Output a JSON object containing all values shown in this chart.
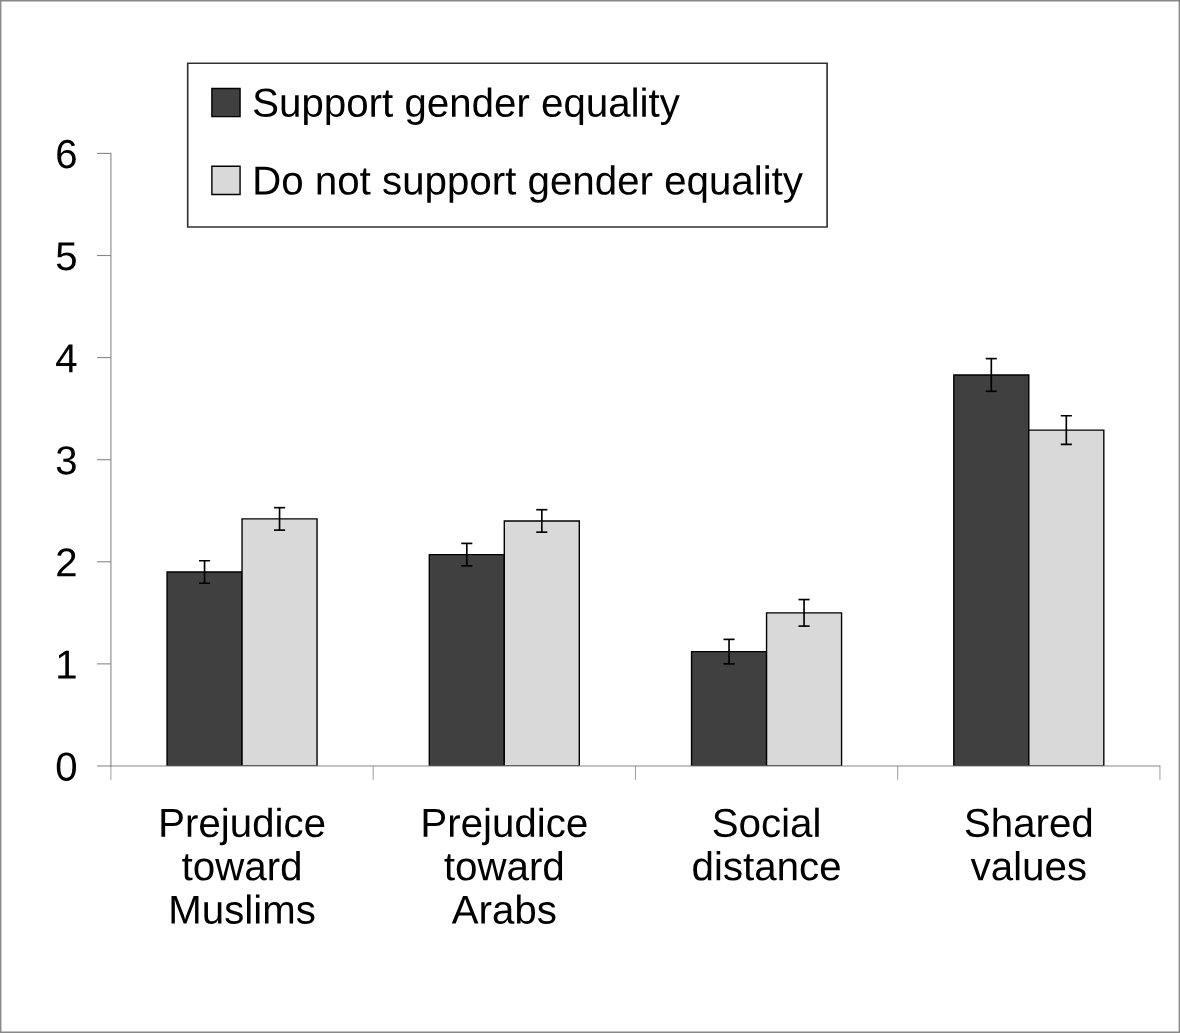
{
  "chart_data": {
    "type": "bar",
    "categories": [
      "Prejudice\ntoward\nMuslims",
      "Prejudice\ntoward\nArabs",
      "Social\ndistance",
      "Shared\nvalues"
    ],
    "series": [
      {
        "name": "Support gender equality",
        "color": "#404040",
        "values": [
          1.9,
          2.07,
          1.12,
          3.83
        ],
        "errors": [
          0.11,
          0.11,
          0.12,
          0.16
        ]
      },
      {
        "name": "Do not support gender equality",
        "color": "#d9d9d9",
        "values": [
          2.42,
          2.4,
          1.5,
          3.29
        ],
        "errors": [
          0.11,
          0.11,
          0.13,
          0.14
        ]
      }
    ],
    "ylim": [
      0,
      6
    ],
    "yticks": [
      0,
      1,
      2,
      3,
      4,
      5,
      6
    ],
    "grid": false,
    "legend": "top left"
  }
}
